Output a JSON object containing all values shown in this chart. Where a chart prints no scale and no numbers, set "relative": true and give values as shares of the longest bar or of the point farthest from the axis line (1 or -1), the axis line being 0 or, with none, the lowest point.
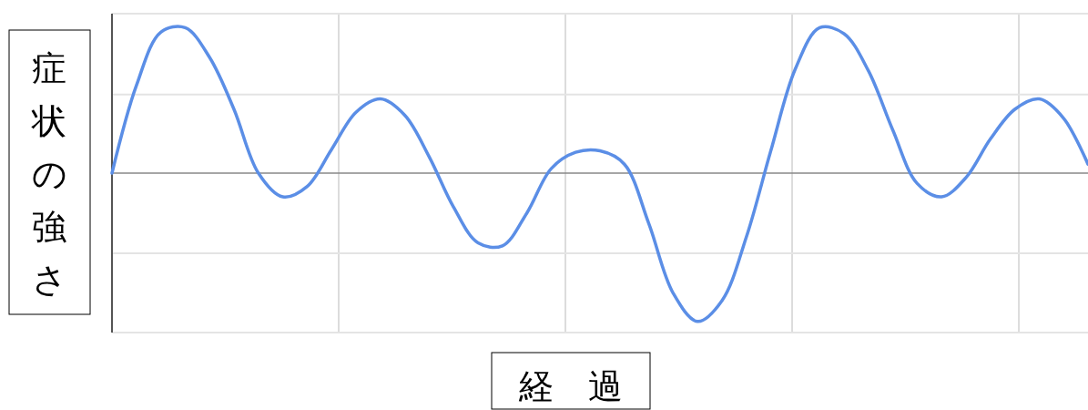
{
  "chart_data": {
    "type": "line",
    "relative": true,
    "xlabel": "経　過",
    "ylabel": "症状の強さ",
    "grid": "x",
    "ref_lines": [
      {
        "axis": "y",
        "value": 0.53,
        "color": "#e4e4e4"
      },
      {
        "axis": "y",
        "value": -0.54,
        "color": "#e4e4e4"
      }
    ],
    "marker": "none",
    "line_style": "solid",
    "categories": [
      null,
      null,
      null,
      null,
      null,
      null,
      null,
      null,
      null,
      null,
      null,
      null,
      null,
      null,
      null,
      null,
      null,
      null,
      null,
      null,
      null,
      null,
      null,
      null,
      null,
      null,
      null,
      null,
      null,
      null,
      null,
      null,
      null,
      null,
      null,
      null,
      null,
      null,
      null,
      null,
      null
    ],
    "series": [
      {
        "color": "#5b8ee6",
        "values": [
          0,
          0.59,
          0.95,
          0.98,
          0.78,
          0.43,
          0,
          -0.16,
          -0.09,
          0.16,
          0.41,
          0.5,
          0.39,
          0.11,
          -0.23,
          -0.47,
          -0.49,
          -0.27,
          0.03,
          0.14,
          0.15,
          0.06,
          -0.34,
          -0.81,
          -1,
          -0.86,
          -0.43,
          0.15,
          0.7,
          0.98,
          0.94,
          0.69,
          0.29,
          -0.07,
          -0.16,
          -0.03,
          0.23,
          0.43,
          0.5,
          0.37,
          0.06
        ]
      }
    ]
  }
}
